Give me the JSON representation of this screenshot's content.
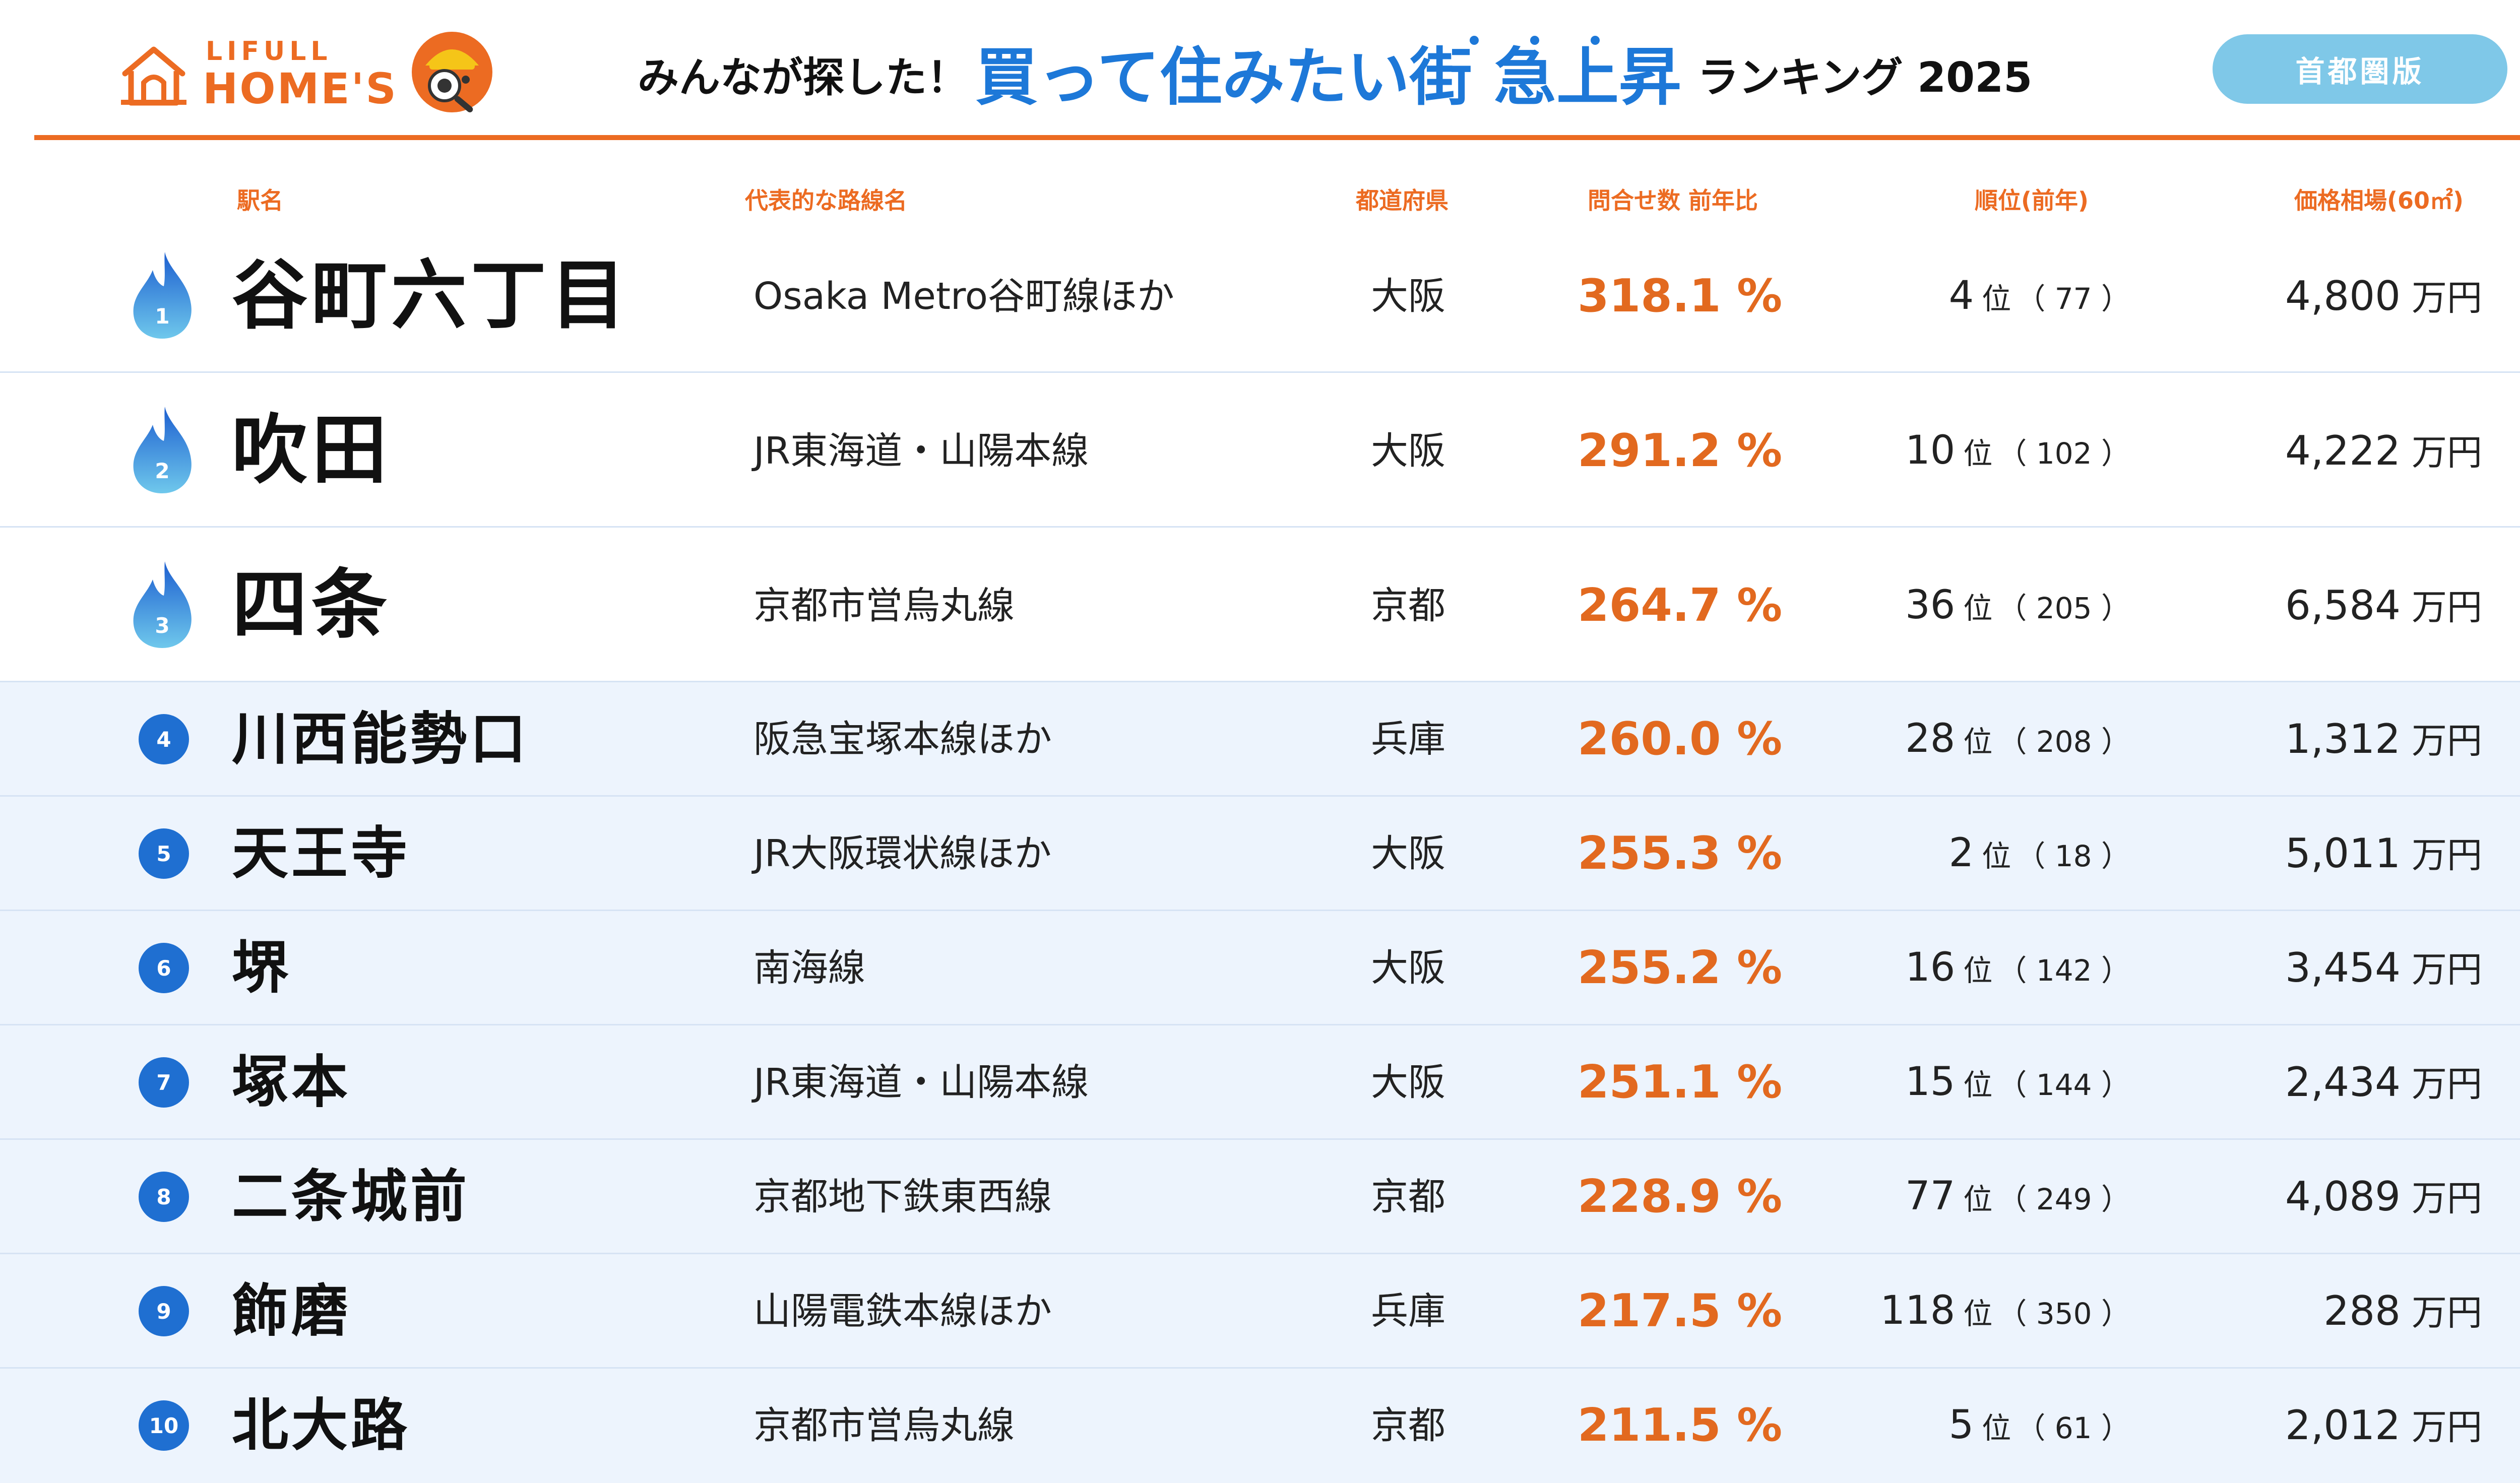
{
  "header": {
    "logo": {
      "line1": "LIFULL",
      "line2": "HOME'S"
    },
    "title_pre": "みんなが探した！",
    "title_main": "買って住みたい街 急上昇",
    "title_post": "ランキング 2025",
    "region_badge": "首都圏版"
  },
  "colors": {
    "accent": "#ec6b22",
    "brand_blue": "#1d78d8",
    "badge": "#7fc8e8",
    "row_bg": "#edf4fd"
  },
  "columns": {
    "station": "駅名",
    "line": "代表的な路線名",
    "prefecture": "都道府県",
    "inquiry_ratio": "問合せ数 前年比",
    "rank": "順位(前年)",
    "price": "価格相場(60㎡)"
  },
  "rows": [
    {
      "rank": "1",
      "station": "谷町六丁目",
      "line": "Osaka Metro谷町線ほか",
      "prefecture": "大阪",
      "ratio": "318.1 %",
      "rank_now": "4",
      "rank_unit": "位",
      "rank_prev": "（ 77 ）",
      "price": "4,800",
      "price_unit": "万円"
    },
    {
      "rank": "2",
      "station": "吹田",
      "line": "JR東海道・山陽本線",
      "prefecture": "大阪",
      "ratio": "291.2 %",
      "rank_now": "10",
      "rank_unit": "位",
      "rank_prev": "（ 102 ）",
      "price": "4,222",
      "price_unit": "万円"
    },
    {
      "rank": "3",
      "station": "四条",
      "line": "京都市営烏丸線",
      "prefecture": "京都",
      "ratio": "264.7 %",
      "rank_now": "36",
      "rank_unit": "位",
      "rank_prev": "（ 205 ）",
      "price": "6,584",
      "price_unit": "万円"
    },
    {
      "rank": "4",
      "station": "川西能勢口",
      "line": "阪急宝塚本線ほか",
      "prefecture": "兵庫",
      "ratio": "260.0 %",
      "rank_now": "28",
      "rank_unit": "位",
      "rank_prev": "（ 208 ）",
      "price": "1,312",
      "price_unit": "万円"
    },
    {
      "rank": "5",
      "station": "天王寺",
      "line": "JR大阪環状線ほか",
      "prefecture": "大阪",
      "ratio": "255.3 %",
      "rank_now": "2",
      "rank_unit": "位",
      "rank_prev": "（ 18 ）",
      "price": "5,011",
      "price_unit": "万円"
    },
    {
      "rank": "6",
      "station": "堺",
      "line": "南海線",
      "prefecture": "大阪",
      "ratio": "255.2 %",
      "rank_now": "16",
      "rank_unit": "位",
      "rank_prev": "（ 142 ）",
      "price": "3,454",
      "price_unit": "万円"
    },
    {
      "rank": "7",
      "station": "塚本",
      "line": "JR東海道・山陽本線",
      "prefecture": "大阪",
      "ratio": "251.1 %",
      "rank_now": "15",
      "rank_unit": "位",
      "rank_prev": "（ 144 ）",
      "price": "2,434",
      "price_unit": "万円"
    },
    {
      "rank": "8",
      "station": "二条城前",
      "line": "京都地下鉄東西線",
      "prefecture": "京都",
      "ratio": "228.9 %",
      "rank_now": "77",
      "rank_unit": "位",
      "rank_prev": "（ 249 ）",
      "price": "4,089",
      "price_unit": "万円"
    },
    {
      "rank": "9",
      "station": "飾磨",
      "line": "山陽電鉄本線ほか",
      "prefecture": "兵庫",
      "ratio": "217.5 %",
      "rank_now": "118",
      "rank_unit": "位",
      "rank_prev": "（ 350 ）",
      "price": "288",
      "price_unit": "万円"
    },
    {
      "rank": "10",
      "station": "北大路",
      "line": "京都市営烏丸線",
      "prefecture": "京都",
      "ratio": "211.5 %",
      "rank_now": "5",
      "rank_unit": "位",
      "rank_prev": "（ 61 ）",
      "price": "2,012",
      "price_unit": "万円"
    }
  ]
}
